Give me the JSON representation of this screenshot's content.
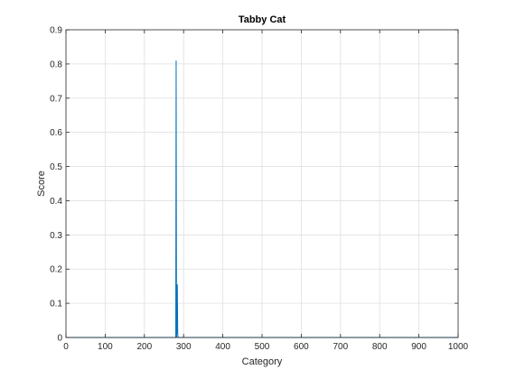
{
  "chart_data": {
    "type": "line",
    "title": "Tabby Cat",
    "xlabel": "Category",
    "ylabel": "Score",
    "xlim": [
      0,
      1000
    ],
    "ylim": [
      0,
      0.9
    ],
    "xticks": [
      0,
      100,
      200,
      300,
      400,
      500,
      600,
      700,
      800,
      900,
      1000
    ],
    "yticks": [
      0,
      0.1,
      0.2,
      0.3,
      0.4,
      0.5,
      0.6,
      0.7,
      0.8,
      0.9
    ],
    "xtick_labels": [
      "0",
      "100",
      "200",
      "300",
      "400",
      "500",
      "600",
      "700",
      "800",
      "900",
      "1000"
    ],
    "ytick_labels": [
      "0",
      "0.1",
      "0.2",
      "0.3",
      "0.4",
      "0.5",
      "0.6",
      "0.7",
      "0.8",
      "0.9"
    ],
    "grid": true,
    "color": "#0072BD",
    "series": [
      {
        "x": [
          0,
          280,
          281,
          282,
          283,
          284,
          285,
          286,
          287,
          1000
        ],
        "y": [
          0,
          0,
          0.81,
          0,
          0.02,
          0.155,
          0.01,
          0,
          0,
          0
        ]
      }
    ]
  }
}
